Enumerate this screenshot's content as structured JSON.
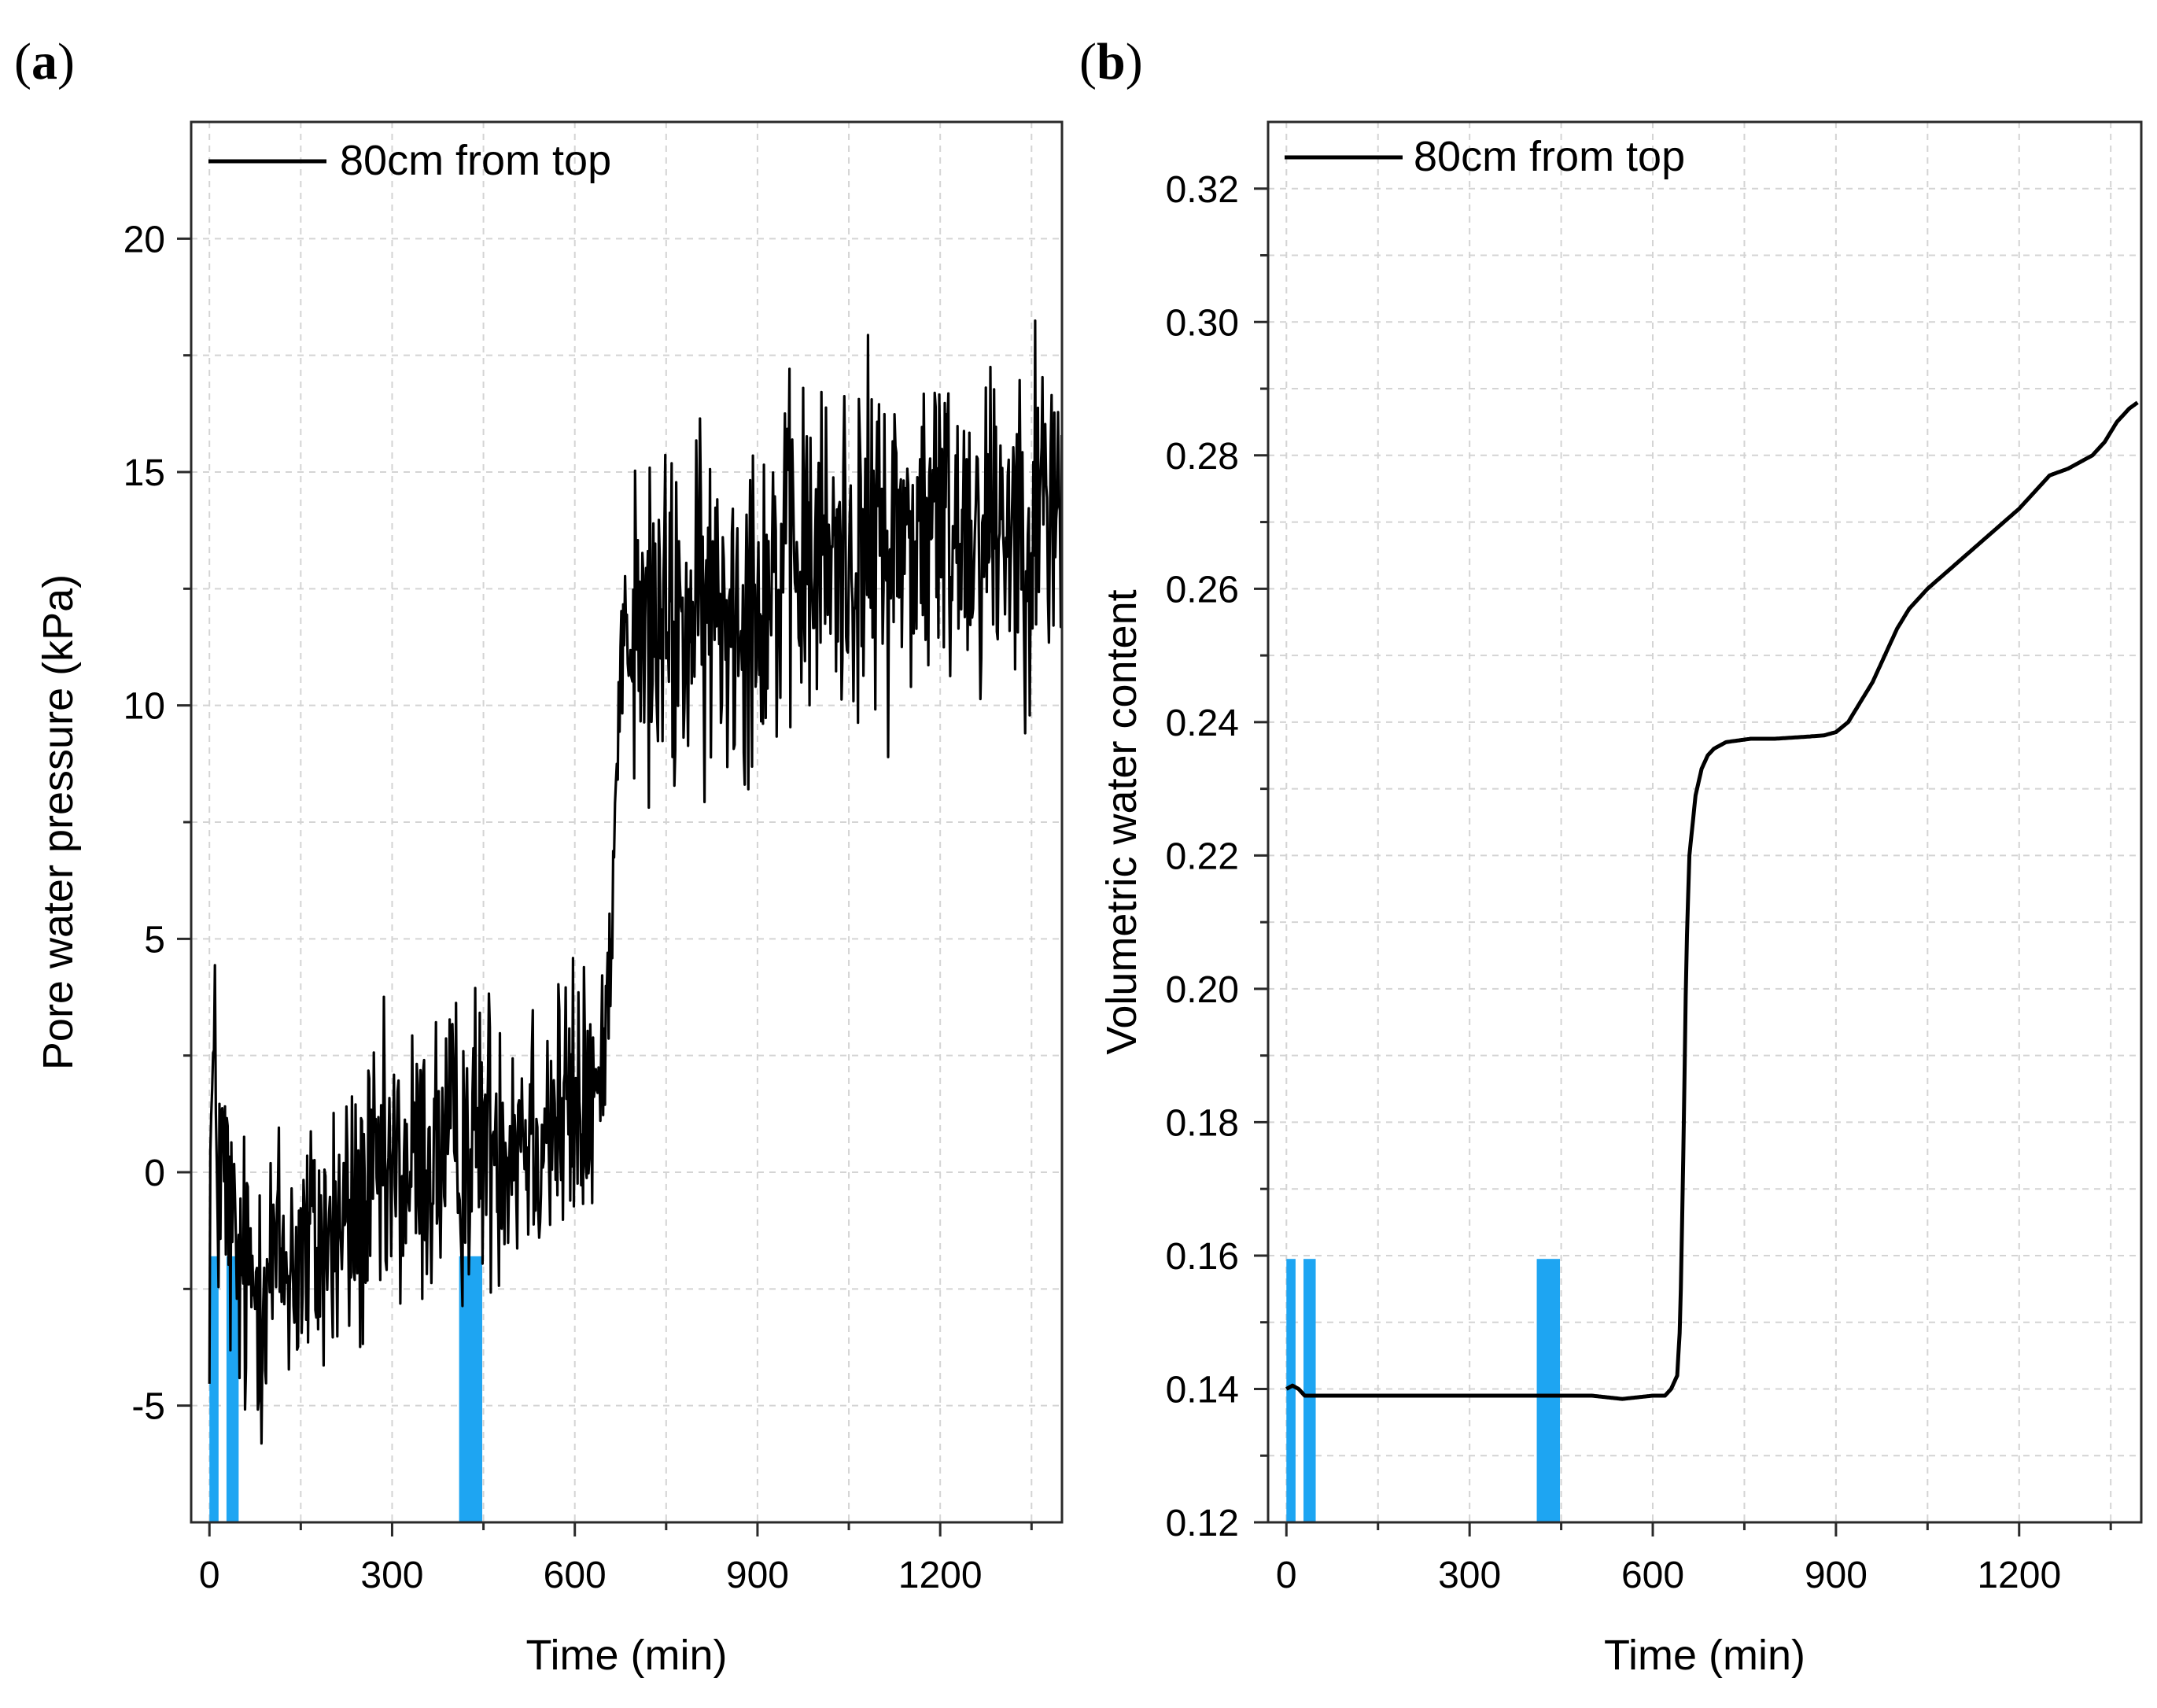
{
  "chart_data": [
    {
      "id": "a",
      "panel_label": "a",
      "type": "line",
      "title": "",
      "xlabel": "Time (min)",
      "ylabel": "Pore water pressure (kPa)",
      "xlim": [
        -30,
        1400
      ],
      "ylim": [
        -7.5,
        22.5
      ],
      "xticks": [
        0,
        300,
        600,
        900,
        1200
      ],
      "xticks_minor": [
        150,
        450,
        750,
        1050,
        1350
      ],
      "yticks": [
        20,
        15,
        10,
        5,
        0,
        -5
      ],
      "ytick_labels": [
        "20",
        "15",
        "10",
        "5",
        "0",
        "-5"
      ],
      "yticks_minor": [
        17.5,
        12.5,
        7.5,
        2.5,
        -2.5
      ],
      "grid": true,
      "legend": {
        "label": "80cm from top",
        "position": "top-left"
      },
      "noisy": true,
      "series": [
        {
          "name": "80cm from top",
          "noise_amplitude": 1.6,
          "x": [
            0,
            5,
            10,
            15,
            25,
            35,
            45,
            60,
            100,
            150,
            200,
            250,
            300,
            350,
            400,
            450,
            500,
            550,
            600,
            640,
            650,
            660,
            665,
            670,
            675,
            680,
            690,
            700,
            750,
            800,
            850,
            900,
            950,
            1000,
            1050,
            1100,
            1150,
            1200,
            1250,
            1300,
            1350,
            1400
          ],
          "y": [
            -1.0,
            1.8,
            1.0,
            0.3,
            -0.3,
            -1.3,
            -2.2,
            -2.5,
            -2.0,
            -1.8,
            -1.4,
            -0.8,
            -0.2,
            0.2,
            0.5,
            0.8,
            1.0,
            1.1,
            1.3,
            1.7,
            3.0,
            5.5,
            7.5,
            9.5,
            11.0,
            11.5,
            11.5,
            11.5,
            11.6,
            11.8,
            12.2,
            12.6,
            12.9,
            13.1,
            13.3,
            13.5,
            13.7,
            13.9,
            14.0,
            14.1,
            14.2,
            14.3
          ]
        }
      ],
      "rainfall_bars": [
        {
          "start": 0,
          "end": 15,
          "top": -1.8
        },
        {
          "start": 28,
          "end": 48,
          "top": -1.8
        },
        {
          "start": 410,
          "end": 448,
          "top": -1.8
        }
      ]
    },
    {
      "id": "b",
      "panel_label": "b",
      "type": "line",
      "title": "",
      "xlabel": "Time (min)",
      "ylabel": "Volumetric water content",
      "xlim": [
        -30,
        1400
      ],
      "ylim": [
        0.12,
        0.33
      ],
      "xticks": [
        0,
        300,
        600,
        900,
        1200
      ],
      "xticks_minor": [
        150,
        450,
        750,
        1050,
        1350
      ],
      "yticks": [
        0.32,
        0.3,
        0.28,
        0.26,
        0.24,
        0.22,
        0.2,
        0.18,
        0.16,
        0.14,
        0.12
      ],
      "ytick_labels": [
        "0.32",
        "0.30",
        "0.28",
        "0.26",
        "0.24",
        "0.22",
        "0.20",
        "0.18",
        "0.16",
        "0.14",
        "0.12"
      ],
      "yticks_minor": [
        0.31,
        0.29,
        0.27,
        0.25,
        0.23,
        0.21,
        0.19,
        0.17,
        0.15,
        0.13
      ],
      "grid": true,
      "legend": {
        "label": "80cm from top",
        "position": "top-left"
      },
      "noisy": false,
      "series": [
        {
          "name": "80cm from top",
          "x": [
            0,
            10,
            20,
            30,
            500,
            550,
            600,
            620,
            630,
            640,
            645,
            650,
            655,
            660,
            670,
            680,
            690,
            700,
            720,
            760,
            800,
            850,
            880,
            900,
            920,
            940,
            960,
            980,
            1000,
            1020,
            1050,
            1100,
            1150,
            1200,
            1230,
            1250,
            1280,
            1300,
            1320,
            1340,
            1360,
            1380,
            1395
          ],
          "y": [
            0.14,
            0.1405,
            0.14,
            0.139,
            0.139,
            0.1385,
            0.139,
            0.139,
            0.14,
            0.142,
            0.15,
            0.175,
            0.205,
            0.22,
            0.229,
            0.233,
            0.235,
            0.236,
            0.237,
            0.2375,
            0.2375,
            0.2378,
            0.238,
            0.2385,
            0.24,
            0.243,
            0.246,
            0.25,
            0.254,
            0.257,
            0.26,
            0.264,
            0.268,
            0.272,
            0.275,
            0.277,
            0.278,
            0.279,
            0.28,
            0.282,
            0.285,
            0.287,
            0.288
          ]
        }
      ],
      "rainfall_bars": [
        {
          "start": 0,
          "end": 15,
          "top": 0.1595
        },
        {
          "start": 28,
          "end": 48,
          "top": 0.1595
        },
        {
          "start": 410,
          "end": 448,
          "top": 0.1595
        }
      ]
    }
  ]
}
